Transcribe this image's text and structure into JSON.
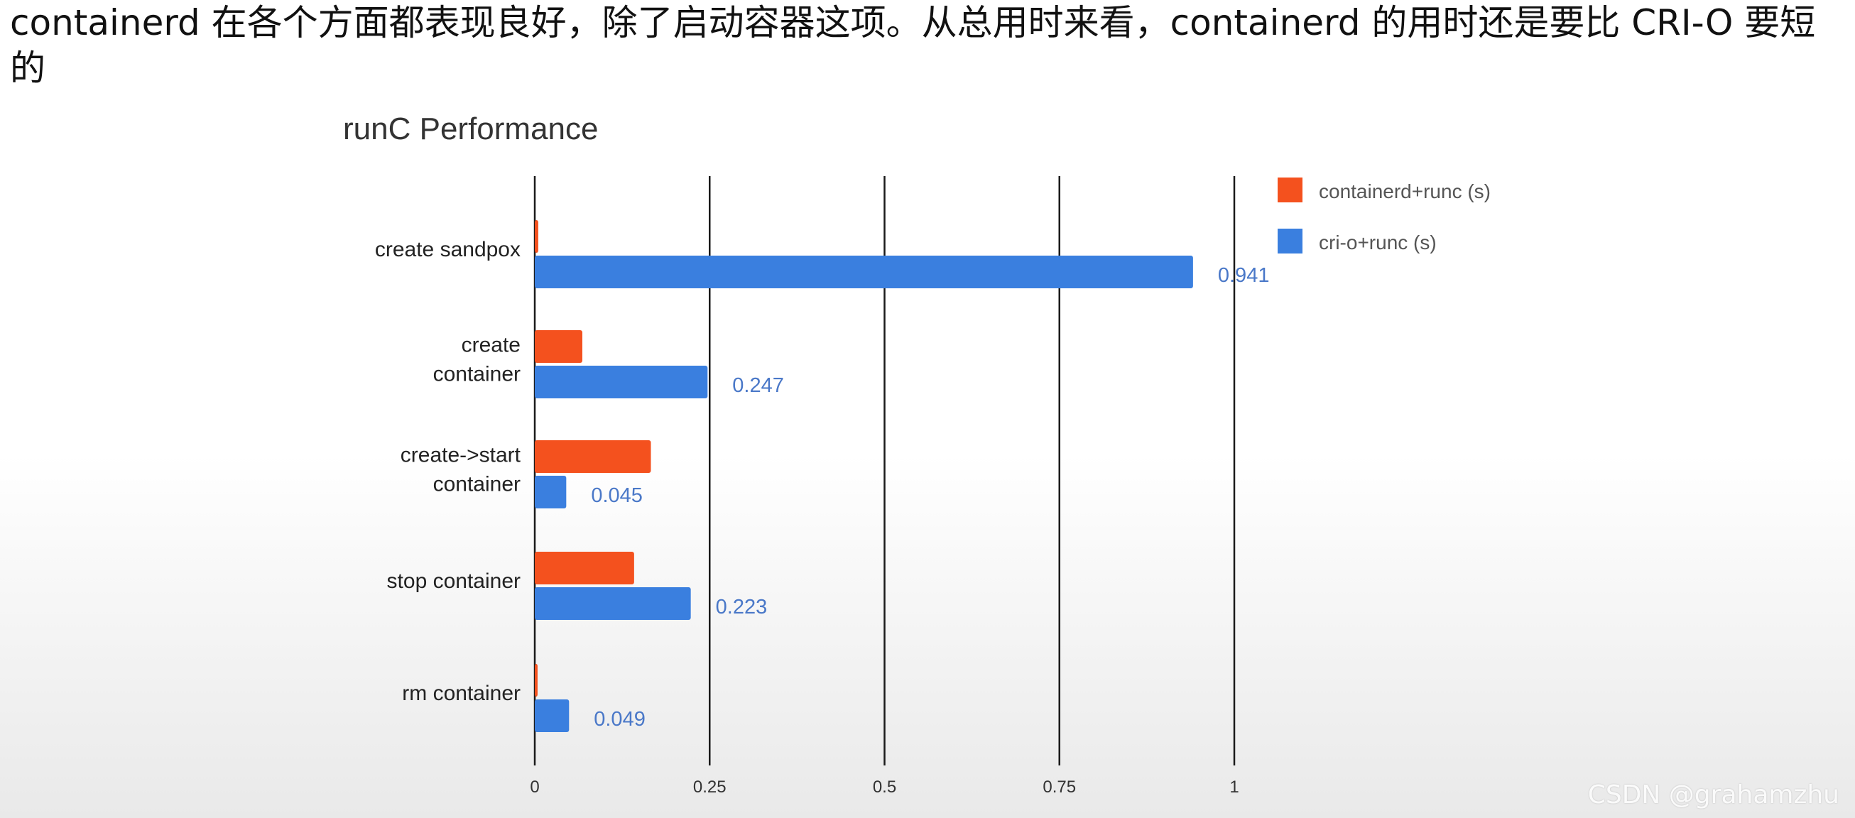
{
  "caption": "containerd 在各个方面都表现良好，除了启动容器这项。从总用时来看，containerd 的用时还是要比 CRI-O 要短的",
  "watermark": "CSDN @grahamzhu",
  "colors": {
    "containerd": "#f4511e",
    "crio": "#3a7fdf",
    "crio_label": "#4a78c8",
    "grid": "#1a1a1a",
    "text": "#333333"
  },
  "chart_data": {
    "type": "bar",
    "orientation": "horizontal",
    "title": "runC Performance",
    "categories": [
      [
        "create sandpox"
      ],
      [
        "create",
        "container"
      ],
      [
        "create->start",
        "container"
      ],
      [
        "stop container"
      ],
      [
        "rm container"
      ]
    ],
    "series": [
      {
        "name": "containerd+runc (s)",
        "color_key": "containerd",
        "values": [
          0.005,
          0.068,
          0.166,
          0.142,
          0.004
        ],
        "data_labels": [
          "",
          "",
          "",
          "",
          ""
        ]
      },
      {
        "name": "cri-o+runc (s)",
        "color_key": "crio",
        "values": [
          0.941,
          0.247,
          0.045,
          0.223,
          0.049
        ],
        "data_labels": [
          "0.941",
          "0.247",
          "0.045",
          "0.223",
          "0.049"
        ]
      }
    ],
    "xlim": [
      0,
      1
    ],
    "xticks": [
      0,
      0.25,
      0.5,
      0.75,
      1
    ],
    "xtick_labels": [
      "0",
      "0.25",
      "0.5",
      "0.75",
      "1"
    ],
    "grid": "vertical",
    "legend_position": "top-right"
  }
}
